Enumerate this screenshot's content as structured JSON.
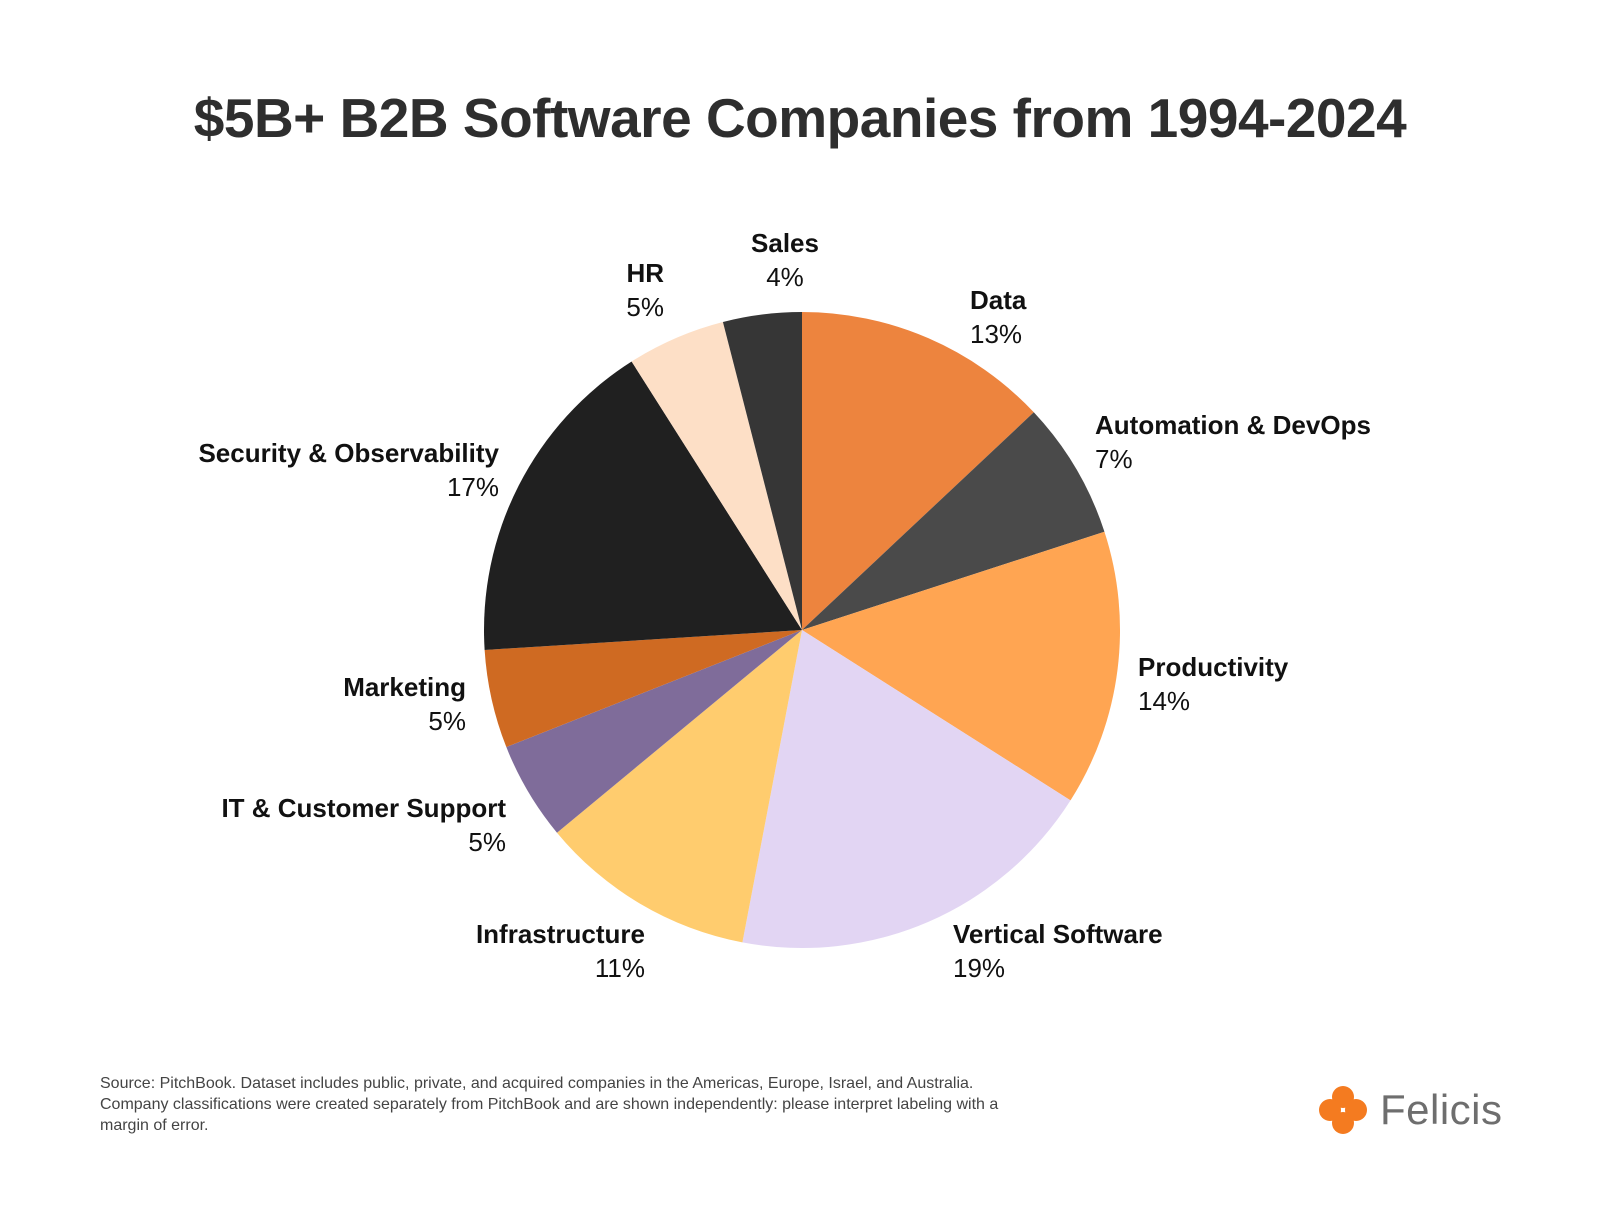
{
  "chart_data": {
    "type": "pie",
    "title": "$5B+ B2B Software Companies from 1994-2024",
    "slices": [
      {
        "label": "Data",
        "value": 13,
        "display": "13%",
        "color": "#ED843E"
      },
      {
        "label": "Automation & DevOps",
        "value": 7,
        "display": "7%",
        "color": "#4A4A4A"
      },
      {
        "label": "Productivity",
        "value": 14,
        "display": "14%",
        "color": "#FFA552"
      },
      {
        "label": "Vertical Software",
        "value": 19,
        "display": "19%",
        "color": "#E2D5F3"
      },
      {
        "label": "Infrastructure",
        "value": 11,
        "display": "11%",
        "color": "#FFCC6E"
      },
      {
        "label": "IT & Customer Support",
        "value": 5,
        "display": "5%",
        "color": "#7F6C9A"
      },
      {
        "label": "Marketing",
        "value": 5,
        "display": "5%",
        "color": "#CF6A22"
      },
      {
        "label": "Security & Observability",
        "value": 17,
        "display": "17%",
        "color": "#202020"
      },
      {
        "label": "HR",
        "value": 5,
        "display": "5%",
        "color": "#FDDFC6"
      },
      {
        "label": "Sales",
        "value": 4,
        "display": "4%",
        "color": "#363636"
      }
    ],
    "start_angle": "12 o'clock",
    "direction": "clockwise"
  },
  "footer": {
    "source": "Source: PitchBook. Dataset includes public, private, and acquired companies in the Americas, Europe, Israel, and Australia. Company classifications were created separately from PitchBook and are shown independently: please interpret labeling with a margin of error.",
    "brand_name": "Felicis",
    "brand_color": "#F47B20",
    "brand_icon": "clover-icon"
  }
}
